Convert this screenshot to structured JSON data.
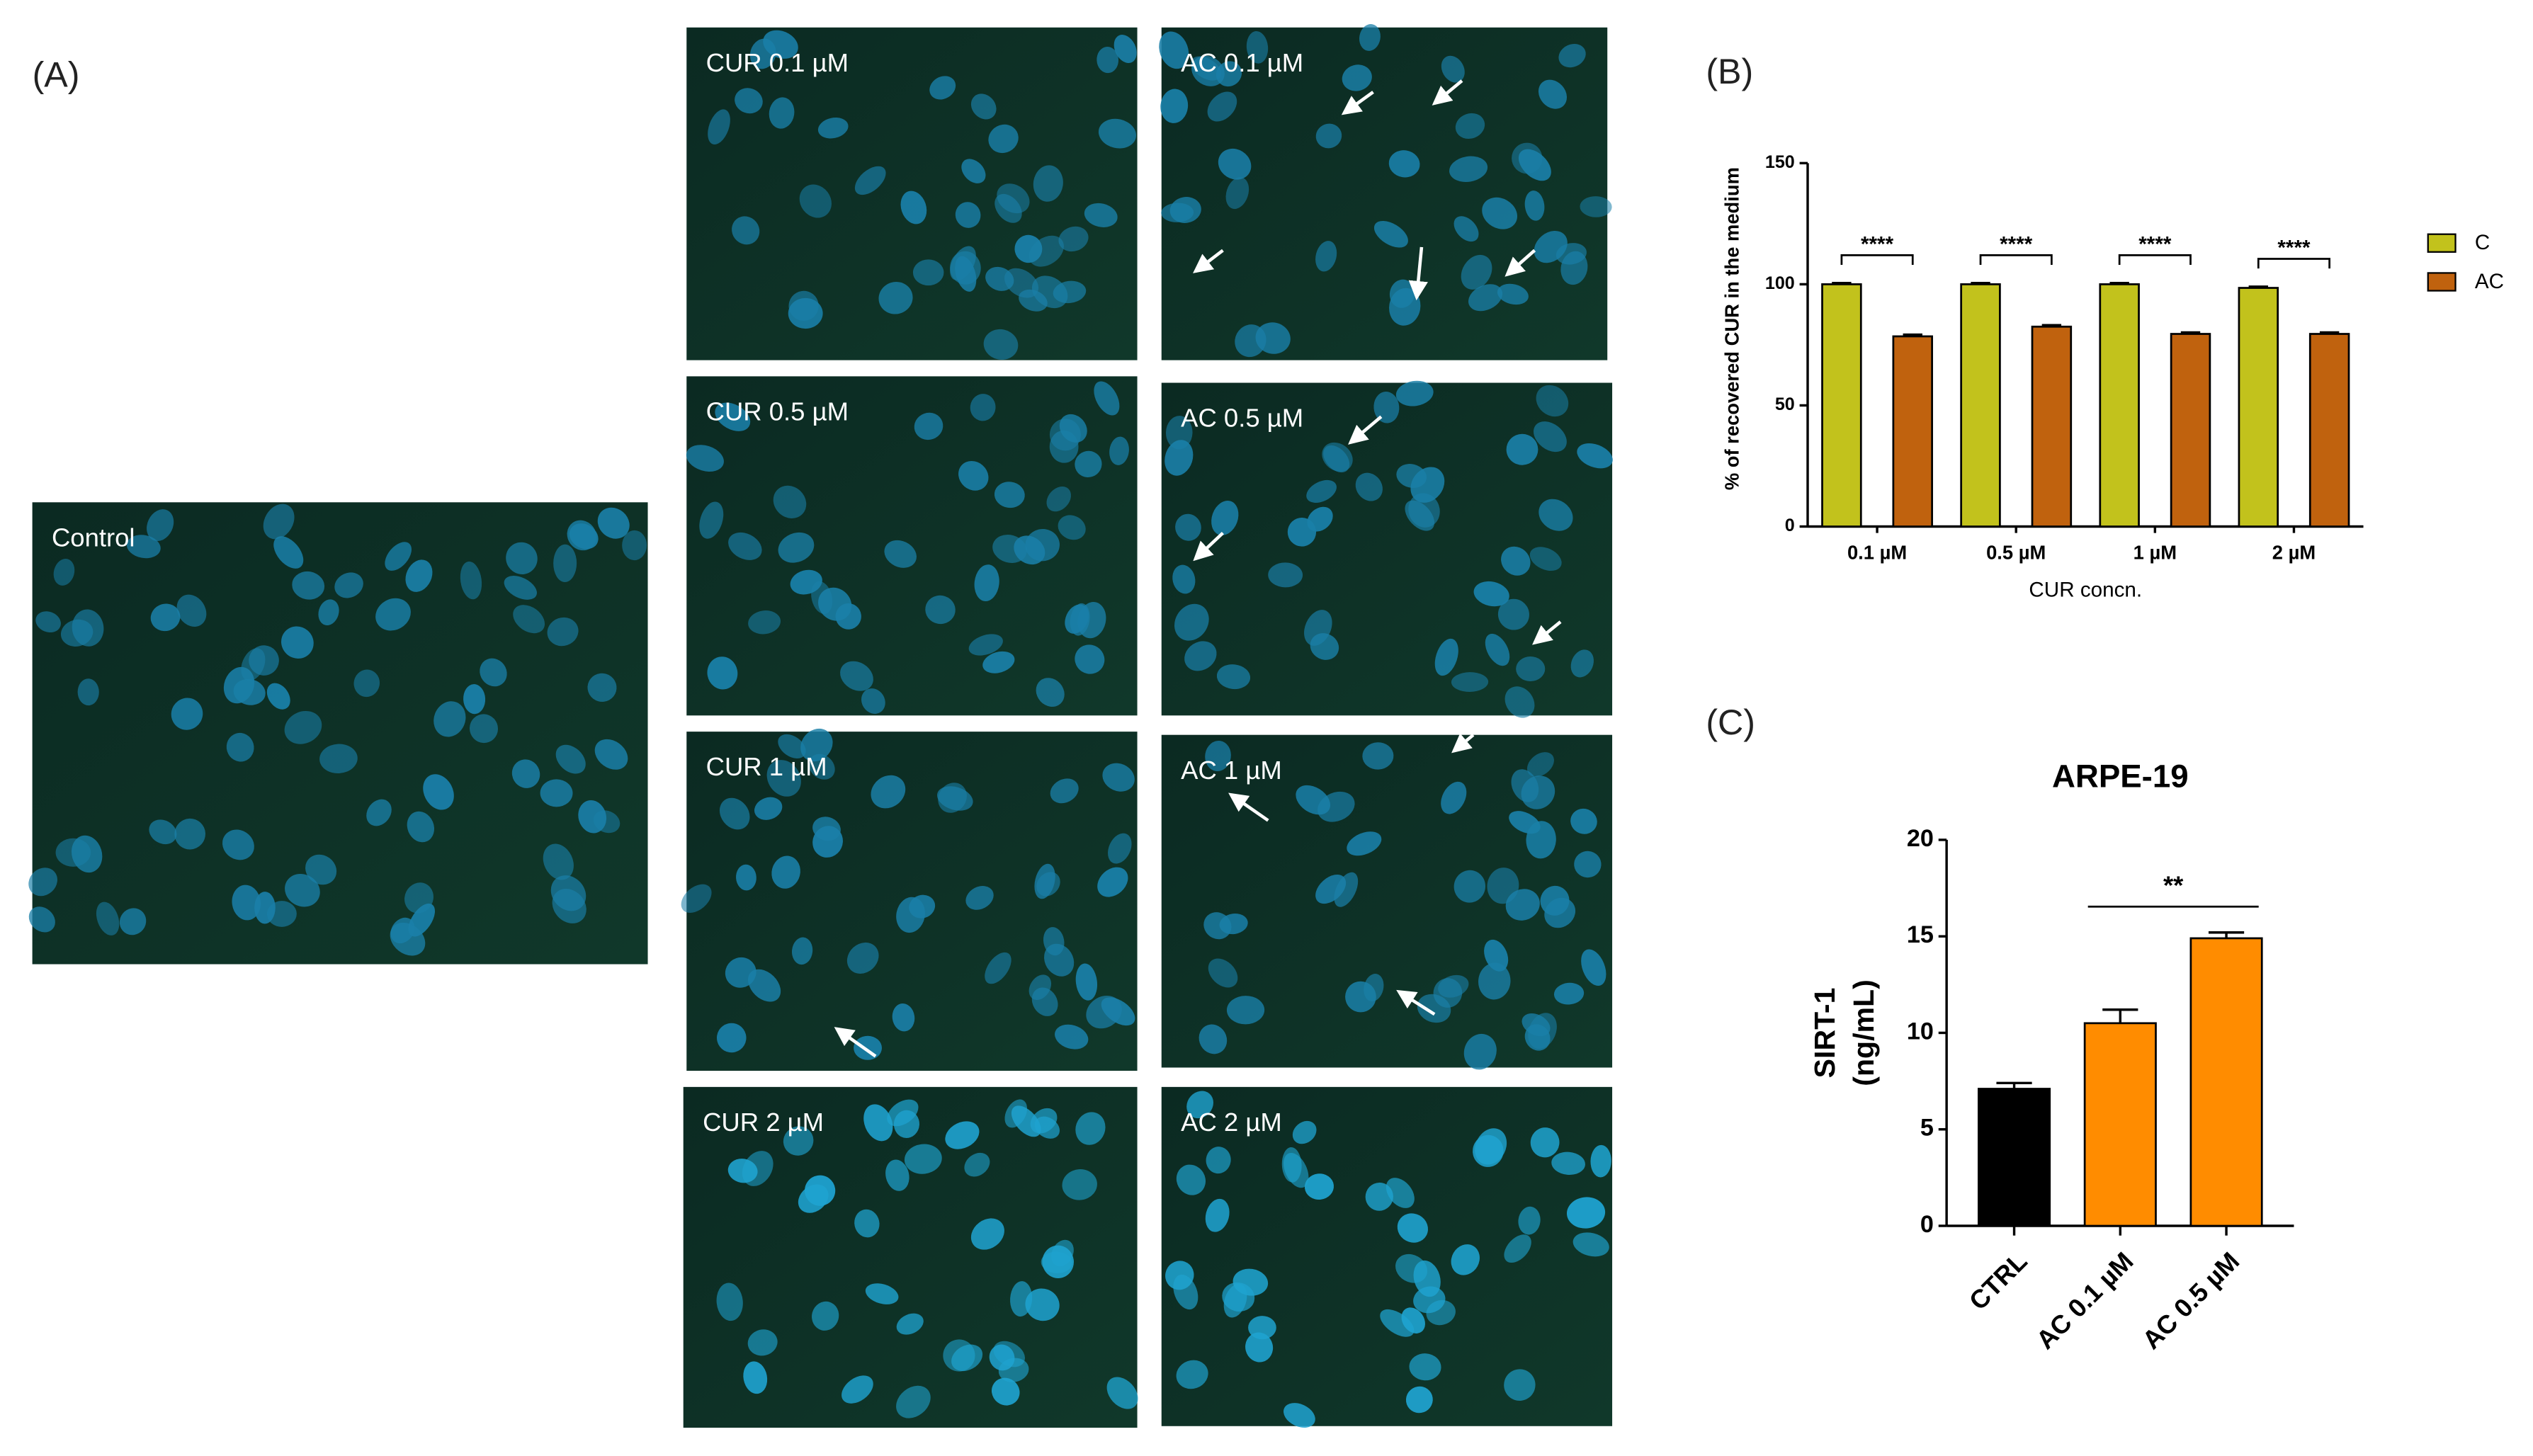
{
  "figure": {
    "panel_labels": [
      "(A)",
      "(B)",
      "(C)"
    ],
    "images": [
      {
        "label": "Control"
      },
      {
        "label": "CUR 0.1 µM"
      },
      {
        "label": "AC 0.1 µM"
      },
      {
        "label": "CUR 0.5 µM"
      },
      {
        "label": "AC 0.5 µM"
      },
      {
        "label": "CUR 1 µM"
      },
      {
        "label": "AC 1 µM"
      },
      {
        "label": "CUR 2 µM"
      },
      {
        "label": "AC 2 µM"
      }
    ]
  },
  "chart_data": [
    {
      "type": "bar",
      "ylabel": "% of recovered CUR in the medium",
      "xlabel": "CUR concn.",
      "categories": [
        "0.1 µM",
        "0.5 µM",
        "1 µM",
        "2 µM"
      ],
      "series": [
        {
          "name": "C",
          "color": "#c2c21c",
          "values": [
            100,
            100,
            100,
            98.5
          ],
          "errors": [
            0.5,
            0.5,
            0.5,
            0.5
          ]
        },
        {
          "name": "AC",
          "color": "#c0620e",
          "values": [
            78.5,
            82.5,
            79.5,
            79.5
          ],
          "errors": [
            0.7,
            0.6,
            0.6,
            0.6
          ]
        }
      ],
      "annotations": [
        "****",
        "****",
        "****",
        "****"
      ],
      "ylim": [
        0,
        150
      ],
      "yticks": [
        0,
        50,
        100,
        150
      ],
      "legend": "right"
    },
    {
      "type": "bar",
      "title": "ARPE-19",
      "ylabel": [
        "SIRT-1",
        "(ng/mL)"
      ],
      "categories": [
        "CTRL",
        "AC 0.1 µM",
        "AC 0.5 µM"
      ],
      "values": [
        7.1,
        10.5,
        14.9
      ],
      "errors": [
        0.3,
        0.7,
        0.3
      ],
      "colors": [
        "#000000",
        "#ff8c00",
        "#ff8c00"
      ],
      "annotations": [
        "**"
      ],
      "ylim": [
        0,
        20
      ],
      "yticks": [
        0,
        5,
        10,
        15,
        20
      ]
    }
  ]
}
